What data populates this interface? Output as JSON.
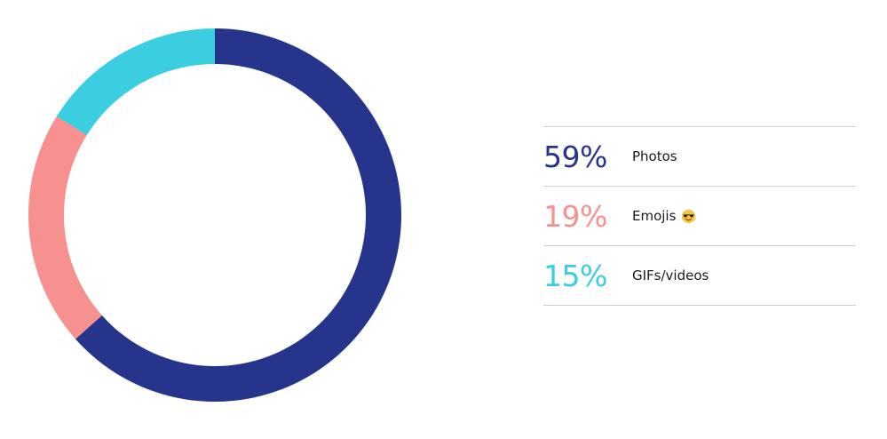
{
  "chart_data": {
    "type": "pie",
    "style": "donut",
    "slices": [
      {
        "label": "Photos",
        "value": 59,
        "display": "59%",
        "color": "#26348b"
      },
      {
        "label": "Emojis",
        "value": 19,
        "display": "19%",
        "color": "#f7918f"
      },
      {
        "label": "GIFs/videos",
        "value": 15,
        "display": "15%",
        "color": "#3bcde0"
      }
    ],
    "legend_position": "right",
    "start": "top",
    "direction": "clockwise"
  },
  "legend": {
    "rows": [
      {
        "pct": "59%",
        "label": "Photos",
        "color": "#26348b",
        "icon": null
      },
      {
        "pct": "19%",
        "label": "Emojis",
        "color": "#f7918f",
        "icon": "sunglasses-emoji-icon"
      },
      {
        "pct": "15%",
        "label": "GIFs/videos",
        "color": "#3bcde0",
        "icon": null
      }
    ]
  }
}
